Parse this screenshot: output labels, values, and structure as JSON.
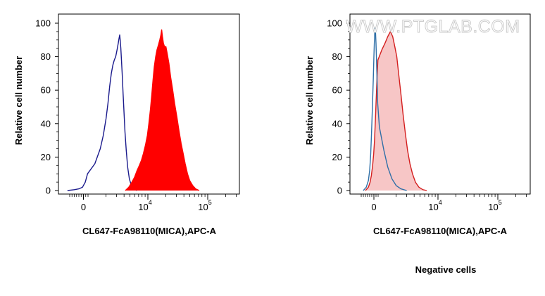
{
  "watermark": "WWW.PTGLAB.COM",
  "caption": "Negative cells",
  "chart_data": [
    {
      "type": "area",
      "xlabel": "CL647-FcA98110(MICA),APC-A",
      "ylabel": "Relative cell number",
      "xscale": "biexponential",
      "x_ticks": [
        {
          "base": "0",
          "exp": "",
          "value": 0
        },
        {
          "base": "10",
          "exp": "4",
          "value": 10000
        },
        {
          "base": "10",
          "exp": "5",
          "value": 100000
        }
      ],
      "y_ticks": [
        0,
        20,
        40,
        60,
        80,
        100
      ],
      "ylim": [
        0,
        100
      ],
      "series": [
        {
          "color": "#1a1a8c",
          "fill": "none",
          "points": [
            [
              -3500,
              0
            ],
            [
              -2000,
              0.5
            ],
            [
              -1000,
              1
            ],
            [
              -200,
              2
            ],
            [
              400,
              5
            ],
            [
              900,
              10
            ],
            [
              1300,
              16
            ],
            [
              1600,
              25
            ],
            [
              1800,
              33
            ],
            [
              2000,
              43
            ],
            [
              2150,
              52
            ],
            [
              2300,
              62
            ],
            [
              2450,
              70
            ],
            [
              2600,
              75
            ],
            [
              2750,
              78
            ],
            [
              2900,
              80
            ],
            [
              3050,
              84
            ],
            [
              3200,
              88
            ],
            [
              3300,
              91
            ],
            [
              3380,
              93
            ],
            [
              3450,
              90
            ],
            [
              3530,
              85
            ],
            [
              3620,
              78
            ],
            [
              3720,
              70
            ],
            [
              3850,
              58
            ],
            [
              4000,
              46
            ],
            [
              4150,
              35
            ],
            [
              4350,
              24
            ],
            [
              4600,
              14
            ],
            [
              4900,
              7
            ],
            [
              5300,
              3
            ],
            [
              5800,
              1
            ],
            [
              6500,
              0
            ]
          ]
        },
        {
          "color": "#ff0000",
          "fill": "#ff0000",
          "points": [
            [
              4200,
              0
            ],
            [
              4800,
              2
            ],
            [
              5400,
              5
            ],
            [
              6000,
              8
            ],
            [
              6600,
              12
            ],
            [
              7200,
              15
            ],
            [
              7800,
              18
            ],
            [
              8400,
              22
            ],
            [
              9100,
              27
            ],
            [
              9800,
              33
            ],
            [
              10400,
              40
            ],
            [
              11000,
              48
            ],
            [
              11600,
              57
            ],
            [
              12200,
              66
            ],
            [
              12800,
              74
            ],
            [
              13500,
              80
            ],
            [
              14200,
              84
            ],
            [
              15000,
              87
            ],
            [
              15800,
              90
            ],
            [
              16500,
              93
            ],
            [
              17000,
              96
            ],
            [
              17500,
              92
            ],
            [
              18200,
              88
            ],
            [
              19000,
              86
            ],
            [
              20000,
              86
            ],
            [
              21000,
              82
            ],
            [
              22500,
              76
            ],
            [
              24000,
              68
            ],
            [
              26000,
              60
            ],
            [
              28000,
              52
            ],
            [
              30500,
              44
            ],
            [
              33000,
              36
            ],
            [
              36000,
              28
            ],
            [
              39000,
              22
            ],
            [
              42000,
              16
            ],
            [
              46000,
              10
            ],
            [
              50000,
              6
            ],
            [
              56000,
              3
            ],
            [
              63000,
              1
            ],
            [
              72000,
              0
            ]
          ]
        }
      ]
    },
    {
      "type": "area",
      "xlabel": "CL647-FcA98110(MICA),APC-A",
      "ylabel": "Relative cell number",
      "xscale": "biexponential",
      "x_ticks": [
        {
          "base": "0",
          "exp": "",
          "value": 0
        },
        {
          "base": "10",
          "exp": "4",
          "value": 10000
        },
        {
          "base": "10",
          "exp": "5",
          "value": 100000
        }
      ],
      "y_ticks": [
        0,
        20,
        40,
        60,
        80,
        100
      ],
      "ylim": [
        0,
        100
      ],
      "series": [
        {
          "color": "#d41f1f",
          "fill": "#f7c6c6",
          "points": [
            [
              -2000,
              0
            ],
            [
              -1300,
              2
            ],
            [
              -900,
              5
            ],
            [
              -600,
              9
            ],
            [
              -300,
              15
            ],
            [
              -50,
              22
            ],
            [
              150,
              30
            ],
            [
              350,
              42
            ],
            [
              550,
              55
            ],
            [
              750,
              68
            ],
            [
              950,
              78
            ],
            [
              1150,
              84
            ],
            [
              1300,
              88
            ],
            [
              1450,
              92
            ],
            [
              1600,
              95
            ],
            [
              1750,
              92
            ],
            [
              1900,
              86
            ],
            [
              2050,
              80
            ],
            [
              2200,
              70
            ],
            [
              2400,
              58
            ],
            [
              2600,
              46
            ],
            [
              2850,
              34
            ],
            [
              3100,
              24
            ],
            [
              3400,
              16
            ],
            [
              3750,
              10
            ],
            [
              4200,
              5
            ],
            [
              4800,
              2
            ],
            [
              5600,
              0.5
            ],
            [
              6500,
              0
            ]
          ]
        },
        {
          "color": "#2f6fa7",
          "fill": "none",
          "points": [
            [
              -2500,
              0
            ],
            [
              -1800,
              2
            ],
            [
              -1300,
              6
            ],
            [
              -1000,
              12
            ],
            [
              -750,
              22
            ],
            [
              -550,
              35
            ],
            [
              -350,
              50
            ],
            [
              -150,
              66
            ],
            [
              0,
              80
            ],
            [
              100,
              88
            ],
            [
              200,
              94
            ],
            [
              300,
              97
            ],
            [
              400,
              94
            ],
            [
              500,
              88
            ],
            [
              620,
              78
            ],
            [
              750,
              66
            ],
            [
              900,
              52
            ],
            [
              1050,
              38
            ],
            [
              1250,
              24
            ],
            [
              1450,
              14
            ],
            [
              1700,
              7
            ],
            [
              2000,
              3
            ],
            [
              2400,
              1
            ],
            [
              3000,
              0
            ]
          ]
        }
      ]
    }
  ]
}
